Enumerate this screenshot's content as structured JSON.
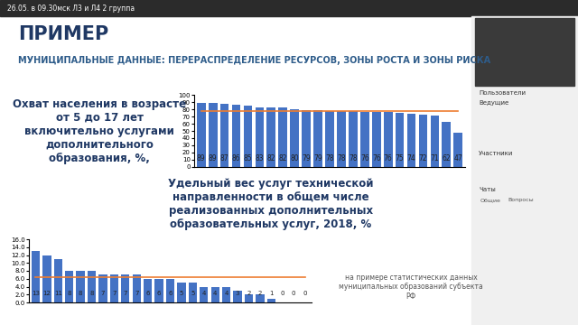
{
  "window": {
    "title": "26.05. в 09.30мск Л3 и Л4 2 группа"
  },
  "sidebar": {
    "panels": [
      "Пользователи",
      "Ведущие",
      "Участники",
      "Чаты"
    ],
    "tabs": [
      "Общие",
      "Вопросы"
    ]
  },
  "slide": {
    "title": "ПРИМЕР",
    "subtitle": "МУНИЦИПАЛЬНЫЕ ДАННЫЕ: ПЕРЕРАСПРЕДЕЛЕНИЕ РЕСУРСОВ, ЗОНЫ РОСТА И ЗОНЫ РИСКА",
    "note": "на примере статистических данных муниципальных образований субъекта РФ"
  },
  "chart_data": [
    {
      "type": "bar",
      "title": "Охват населения в возрасте от 5 до 17 лет включительно услугами дополнительного образования, %,",
      "categories": [
        null,
        null,
        null,
        null,
        null,
        null,
        null,
        null,
        null,
        null,
        null,
        null,
        null,
        null,
        null,
        null,
        null,
        null,
        null,
        null,
        null,
        null,
        null
      ],
      "series": [
        {
          "type": "bar",
          "color": "#4472c4",
          "values": [
            89,
            89,
            87,
            86,
            85,
            83,
            82,
            82,
            80,
            79,
            79,
            78,
            78,
            78,
            76,
            76,
            76,
            75,
            74,
            72,
            71,
            62,
            47
          ]
        },
        {
          "type": "line",
          "color": "#ed7d31",
          "values": [
            77,
            77,
            77,
            77,
            77,
            77,
            77,
            77,
            77,
            77,
            77,
            77,
            77,
            77,
            77,
            77,
            77,
            77,
            77,
            77,
            77,
            77,
            77
          ]
        }
      ],
      "ylim": [
        0,
        100
      ],
      "yticks": [
        0,
        10,
        20,
        30,
        40,
        50,
        60,
        70,
        80,
        90,
        100
      ],
      "data_labels": true,
      "tick_labels": "y",
      "grid": false
    },
    {
      "type": "bar",
      "title": "Удельный вес услуг технической направленности в общем числе реализованных дополнительных образовательных услуг, 2018, %",
      "categories": [
        null,
        null,
        null,
        null,
        null,
        null,
        null,
        null,
        null,
        null,
        null,
        null,
        null,
        null,
        null,
        null,
        null,
        null,
        null,
        null,
        null,
        null,
        null,
        null,
        null
      ],
      "series": [
        {
          "type": "bar",
          "color": "#4472c4",
          "values": [
            13,
            12,
            11,
            8,
            8,
            8,
            7,
            7,
            7,
            7,
            6,
            6,
            6,
            5,
            5,
            4,
            4,
            4,
            3,
            2,
            2,
            1,
            0,
            0,
            0
          ]
        },
        {
          "type": "line",
          "color": "#ed7d31",
          "values": [
            6.5,
            6.5,
            6.5,
            6.5,
            6.5,
            6.5,
            6.5,
            6.5,
            6.5,
            6.5,
            6.5,
            6.5,
            6.5,
            6.5,
            6.5,
            6.5,
            6.5,
            6.5,
            6.5,
            6.5,
            6.5,
            6.5,
            6.5,
            6.5,
            6.5
          ]
        }
      ],
      "ylim": [
        0,
        16
      ],
      "yticks": [
        {
          "value": 0,
          "label": "0.0"
        },
        {
          "value": 2,
          "label": "2.0"
        },
        {
          "value": 4,
          "label": "4.0"
        },
        {
          "value": 6,
          "label": "6.0"
        },
        {
          "value": 8,
          "label": "8.0"
        },
        {
          "value": 10,
          "label": "10.0"
        },
        {
          "value": 12,
          "label": "12.0"
        },
        {
          "value": 14,
          "label": "14.0"
        },
        {
          "value": 16,
          "label": "16.0"
        }
      ],
      "data_labels": true,
      "tick_labels": "y",
      "grid": false
    }
  ]
}
